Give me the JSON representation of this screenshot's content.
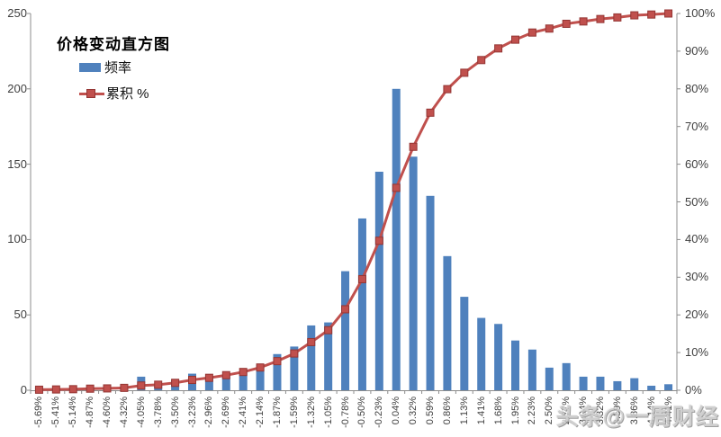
{
  "chart": {
    "title": "价格变动直方图",
    "legend_frequency": "频率",
    "legend_cumulative": "累积 %",
    "watermark": "头条@一周财经"
  },
  "chart_data": {
    "type": "bar",
    "subtype": "pareto-combo (histogram bars + cumulative % line)",
    "title": "价格变动直方图",
    "xlabel": "",
    "ylabel_left": "",
    "ylabel_right": "",
    "grid": false,
    "legend_position": "top-left",
    "categories": [
      "-5.69%",
      "-5.41%",
      "-5.14%",
      "-4.87%",
      "-4.60%",
      "-4.32%",
      "-4.05%",
      "-3.78%",
      "-3.50%",
      "-3.23%",
      "-2.96%",
      "-2.69%",
      "-2.41%",
      "-2.14%",
      "-1.87%",
      "-1.59%",
      "-1.32%",
      "-1.05%",
      "-0.78%",
      "-0.50%",
      "-0.23%",
      "0.04%",
      "0.32%",
      "0.59%",
      "0.86%",
      "1.13%",
      "1.41%",
      "1.68%",
      "1.95%",
      "2.23%",
      "2.50%",
      "2.77%",
      "3.04%",
      "3.32%",
      "3.59%",
      "3.86%",
      "4.14%",
      "4.41%"
    ],
    "series": [
      {
        "name": "频率",
        "type": "bar",
        "axis": "left",
        "color": "#4F81BD",
        "values": [
          2,
          1,
          1,
          2,
          1,
          2,
          9,
          3,
          7,
          11,
          8,
          10,
          12,
          17,
          24,
          29,
          43,
          45,
          79,
          114,
          145,
          200,
          155,
          129,
          89,
          62,
          48,
          44,
          33,
          27,
          15,
          18,
          9,
          9,
          6,
          8,
          3,
          4
        ]
      },
      {
        "name": "累积 %",
        "type": "line",
        "axis": "right",
        "color": "#C0504D",
        "marker": "square",
        "values": [
          0.14,
          0.21,
          0.28,
          0.42,
          0.49,
          0.63,
          1.26,
          1.47,
          1.97,
          2.74,
          3.3,
          4.0,
          4.85,
          6.04,
          7.72,
          9.76,
          12.78,
          15.94,
          21.49,
          29.49,
          39.68,
          53.72,
          64.61,
          73.67,
          79.92,
          84.27,
          87.64,
          90.73,
          93.05,
          94.94,
          96.0,
          97.26,
          97.89,
          98.53,
          98.95,
          99.51,
          99.72,
          100.0
        ]
      }
    ],
    "left_axis": {
      "range": [
        0,
        250
      ],
      "ticks": [
        0,
        50,
        100,
        150,
        200,
        250
      ]
    },
    "right_axis": {
      "range": [
        0,
        100
      ],
      "ticks": [
        "0%",
        "10%",
        "20%",
        "30%",
        "40%",
        "50%",
        "60%",
        "70%",
        "80%",
        "90%",
        "100%"
      ]
    },
    "colors": {
      "bar": "#4F81BD",
      "line": "#C0504D",
      "marker_border": "#943634",
      "axis": "#8c8c8c",
      "text": "#3f3f3f"
    }
  }
}
